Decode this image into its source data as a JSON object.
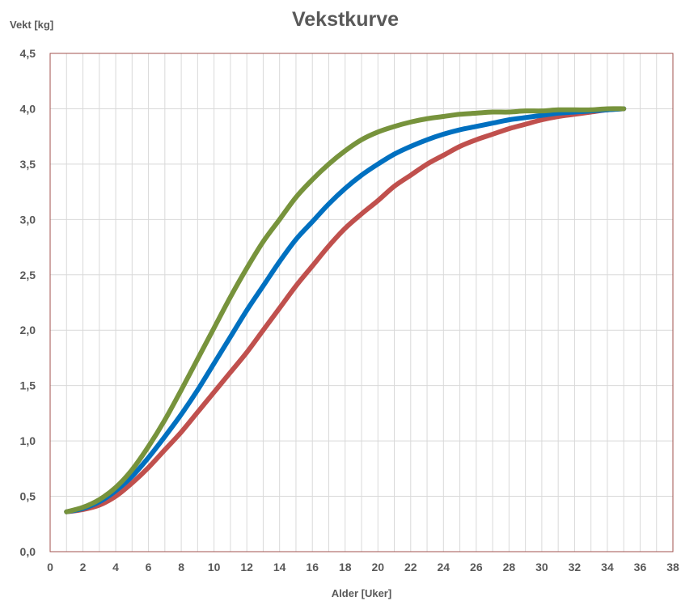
{
  "chart_data": {
    "type": "line",
    "title": "Vekstkurve",
    "xlabel": "Alder [Uker]",
    "ylabel": "Vekt [kg]",
    "xlim": [
      0,
      38
    ],
    "ylim": [
      0,
      4.5
    ],
    "x_ticks": [
      "0",
      "2",
      "4",
      "6",
      "8",
      "10",
      "12",
      "14",
      "16",
      "18",
      "20",
      "22",
      "24",
      "26",
      "28",
      "30",
      "32",
      "34",
      "36",
      "38"
    ],
    "y_ticks": [
      "0,0",
      "0,5",
      "1,0",
      "1,5",
      "2,0",
      "2,5",
      "3,0",
      "3,5",
      "4,0",
      "4,5"
    ],
    "grid": true,
    "colors": {
      "plot_border": "#a0524d",
      "grid": "#d9d9d9",
      "text": "#595959"
    },
    "x": [
      1,
      2,
      3,
      4,
      5,
      6,
      7,
      8,
      9,
      10,
      11,
      12,
      13,
      14,
      15,
      16,
      17,
      18,
      19,
      20,
      21,
      22,
      23,
      24,
      25,
      26,
      27,
      28,
      29,
      30,
      31,
      32,
      33,
      34,
      35
    ],
    "series": [
      {
        "color": "#c0504d",
        "values": [
          0.36,
          0.38,
          0.42,
          0.5,
          0.62,
          0.76,
          0.92,
          1.08,
          1.26,
          1.44,
          1.62,
          1.8,
          2.0,
          2.2,
          2.4,
          2.58,
          2.76,
          2.92,
          3.05,
          3.17,
          3.3,
          3.4,
          3.5,
          3.58,
          3.66,
          3.72,
          3.77,
          3.82,
          3.86,
          3.9,
          3.93,
          3.95,
          3.97,
          3.99,
          4.0
        ]
      },
      {
        "color": "#0070c0",
        "values": [
          0.36,
          0.39,
          0.45,
          0.55,
          0.68,
          0.85,
          1.04,
          1.24,
          1.46,
          1.7,
          1.94,
          2.18,
          2.4,
          2.62,
          2.82,
          2.98,
          3.14,
          3.28,
          3.4,
          3.5,
          3.59,
          3.66,
          3.72,
          3.77,
          3.81,
          3.84,
          3.87,
          3.9,
          3.92,
          3.94,
          3.96,
          3.97,
          3.98,
          3.99,
          4.0
        ]
      },
      {
        "color": "#77933c",
        "values": [
          0.36,
          0.4,
          0.47,
          0.58,
          0.74,
          0.95,
          1.19,
          1.46,
          1.74,
          2.02,
          2.3,
          2.56,
          2.8,
          3.0,
          3.2,
          3.36,
          3.5,
          3.62,
          3.72,
          3.79,
          3.84,
          3.88,
          3.91,
          3.93,
          3.95,
          3.96,
          3.97,
          3.97,
          3.98,
          3.98,
          3.99,
          3.99,
          3.99,
          4.0,
          4.0
        ]
      }
    ]
  }
}
